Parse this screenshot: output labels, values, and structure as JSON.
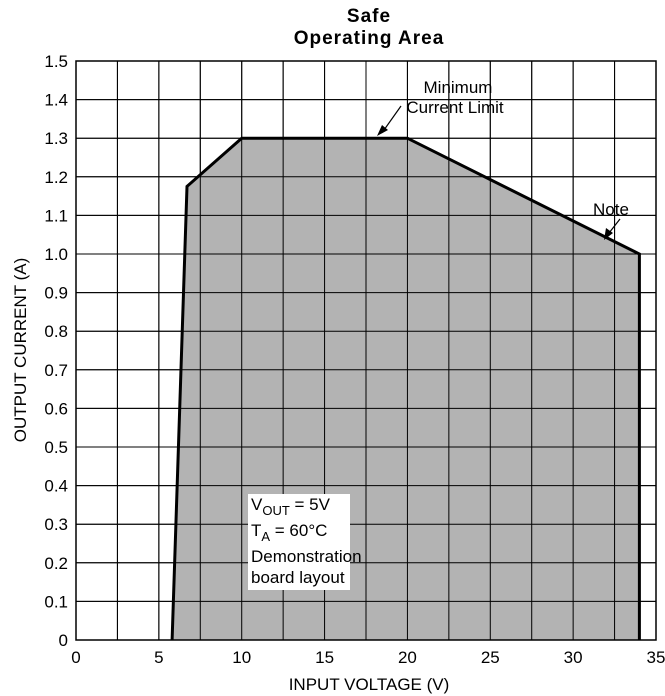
{
  "chart_data": {
    "type": "area",
    "title_line1": "Safe",
    "title_line2": "Operating Area",
    "xlabel": "INPUT VOLTAGE (V)",
    "ylabel": "OUTPUT CURRENT (A)",
    "xlim": [
      0,
      35
    ],
    "ylim": [
      0,
      1.5
    ],
    "x_ticks": [
      0,
      5,
      10,
      15,
      20,
      25,
      30,
      35
    ],
    "x_tick_labels": [
      "0",
      "5",
      "10",
      "15",
      "20",
      "25",
      "30",
      "35"
    ],
    "y_ticks": [
      0,
      0.1,
      0.2,
      0.3,
      0.4,
      0.5,
      0.6,
      0.7,
      0.8,
      0.9,
      1.0,
      1.1,
      1.2,
      1.3,
      1.4,
      1.5
    ],
    "y_tick_labels": [
      "0",
      "0.1",
      "0.2",
      "0.3",
      "0.4",
      "0.5",
      "0.6",
      "0.7",
      "0.8",
      "0.9",
      "1.0",
      "1.1",
      "1.2",
      "1.3",
      "1.4",
      "1.5"
    ],
    "x_grid_step": 2.5,
    "y_grid_step": 0.1,
    "grid": true,
    "fill_color": "#b3b3b3",
    "line_color": "#000000",
    "boundary": [
      {
        "x": 5.8,
        "y": 0
      },
      {
        "x": 6.7,
        "y": 1.175
      },
      {
        "x": 10,
        "y": 1.3
      },
      {
        "x": 20,
        "y": 1.3
      },
      {
        "x": 34,
        "y": 1.0
      },
      {
        "x": 34,
        "y": 0
      }
    ],
    "annotations": {
      "min_current_line1": "Minimum",
      "min_current_line2": "Current Limit",
      "note": "Note",
      "vout_main": "V",
      "vout_sub": "OUT",
      "vout_rest": " = 5V",
      "ta_main": "T",
      "ta_sub": "A",
      "ta_rest": " = 60°C",
      "board_line1": "Demonstration",
      "board_line2": "board layout"
    }
  }
}
